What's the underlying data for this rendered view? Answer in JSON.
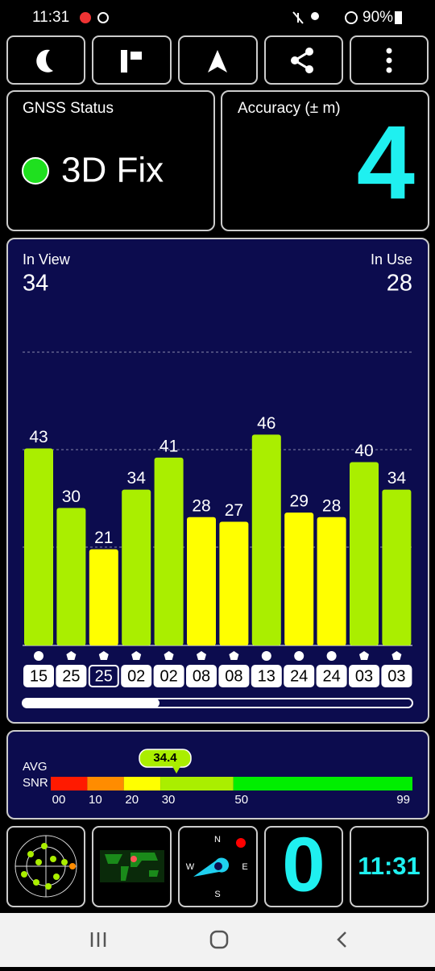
{
  "status_bar": {
    "time": "11:31",
    "battery": "90%"
  },
  "gnss_status": {
    "title": "GNSS Status",
    "value": "3D Fix"
  },
  "accuracy": {
    "title": "Accuracy (± m)",
    "value": "4"
  },
  "satellites": {
    "in_view_label": "In View",
    "in_view": "34",
    "in_use_label": "In Use",
    "in_use": "28",
    "chart_data": {
      "type": "bar",
      "categories": [
        "15",
        "25",
        "25",
        "02",
        "02",
        "08",
        "08",
        "13",
        "24",
        "24",
        "03",
        "03"
      ],
      "values": [
        43,
        30,
        21,
        34,
        41,
        28,
        27,
        46,
        29,
        28,
        40,
        34
      ],
      "colors": [
        "#aaee00",
        "#aaee00",
        "#ffff00",
        "#aaee00",
        "#aaee00",
        "#ffff00",
        "#ffff00",
        "#aaee00",
        "#ffff00",
        "#ffff00",
        "#aaee00",
        "#aaee00"
      ],
      "ylim": [
        0,
        64
      ]
    }
  },
  "snr": {
    "labels": [
      "AVG",
      "SNR"
    ],
    "avg": 34.4,
    "ticks": [
      {
        "value": 0,
        "label": "00"
      },
      10,
      20,
      30,
      50,
      99
    ],
    "colors": [
      "#ff1a00",
      "#ff8c00",
      "#ffff00",
      "#aaee00",
      "#00ee00"
    ]
  },
  "compass": {
    "n": "N",
    "e": "E",
    "s": "S",
    "w": "W"
  },
  "tiles": {
    "counter": "0",
    "clock": "11:31"
  }
}
